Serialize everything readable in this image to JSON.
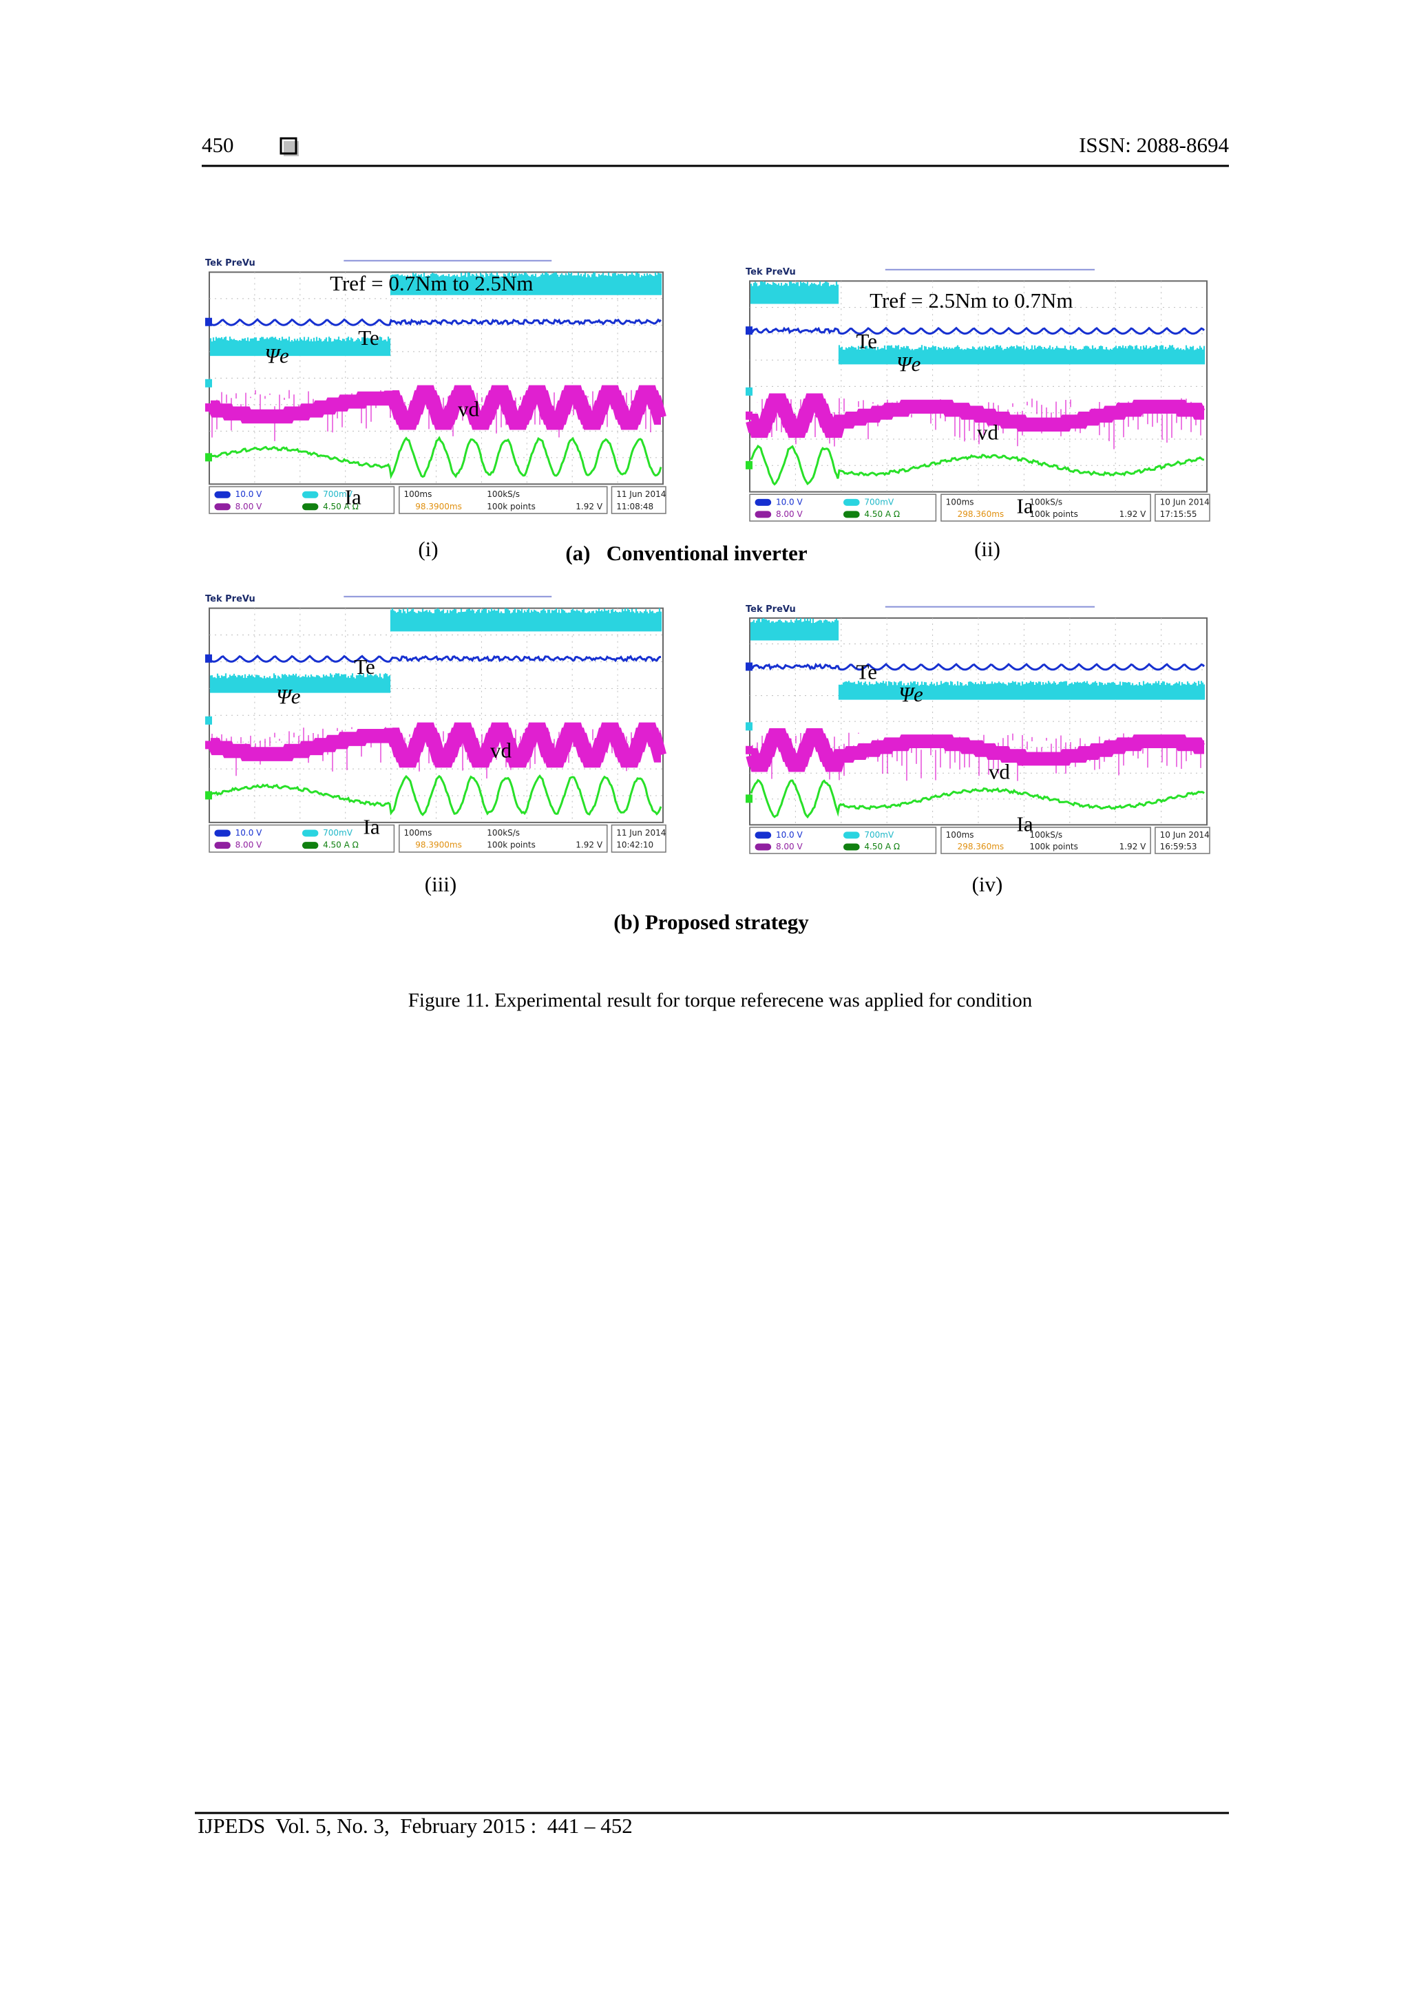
{
  "header": {
    "page": "450",
    "issn": "ISSN: 2088-8694"
  },
  "figure": {
    "panels": [
      {
        "annotation": "Tref = 0.7Nm to 2.5Nm",
        "labels": {
          "te": "Te",
          "psi": "Ψe",
          "vd": "vd",
          "ia": "Ia"
        },
        "tag": "(i)",
        "scope": {
          "brand": "Tek PreVu",
          "ch1": "10.0 V",
          "ch3": "8.00 V",
          "ch2": "700mV",
          "ch4": "4.50 A Ω",
          "time": "100ms",
          "offset": "98.3900ms",
          "rate": "100kS/s",
          "points": "100k points",
          "trig": "1.92 V",
          "date": "11 Jun 2014",
          "clock": "11:08:48"
        }
      },
      {
        "annotation": "Tref = 2.5Nm to 0.7Nm",
        "labels": {
          "te": "Te",
          "psi": "Ψe",
          "vd": "vd",
          "ia": "Ia"
        },
        "tag": "(ii)",
        "scope": {
          "brand": "Tek PreVu",
          "ch1": "10.0 V",
          "ch3": "8.00 V",
          "ch2": "700mV",
          "ch4": "4.50 A Ω",
          "time": "100ms",
          "offset": "298.360ms",
          "rate": "100kS/s",
          "points": "100k points",
          "trig": "1.92 V",
          "date": "10 Jun 2014",
          "clock": "17:15:55"
        }
      },
      {
        "labels": {
          "te": "Te",
          "psi": "Ψe",
          "vd": "vd",
          "ia": "Ia"
        },
        "tag": "(iii)",
        "scope": {
          "brand": "Tek PreVu",
          "ch1": "10.0 V",
          "ch3": "8.00 V",
          "ch2": "700mV",
          "ch4": "4.50 A Ω",
          "time": "100ms",
          "offset": "98.3900ms",
          "rate": "100kS/s",
          "points": "100k points",
          "trig": "1.92 V",
          "date": "11 Jun 2014",
          "clock": "10:42:10"
        }
      },
      {
        "labels": {
          "te": "Te",
          "psi": "Ψe",
          "vd": "vd",
          "ia": "Ia"
        },
        "tag": "(iv)",
        "scope": {
          "brand": "Tek PreVu",
          "ch1": "10.0 V",
          "ch3": "8.00 V",
          "ch2": "700mV",
          "ch4": "4.50 A Ω",
          "time": "100ms",
          "offset": "298.360ms",
          "rate": "100kS/s",
          "points": "100k points",
          "trig": "1.92 V",
          "date": "10 Jun 2014",
          "clock": "16:59:53"
        }
      }
    ],
    "group_a": "(a)   Conventional inverter",
    "group_b": "(b) Proposed strategy",
    "caption": "Figure 11. Experimental result for torque referecene was applied for condition"
  },
  "footer": "IJPEDS  Vol. 5, No. 3,  February 2015 :  441 – 452"
}
